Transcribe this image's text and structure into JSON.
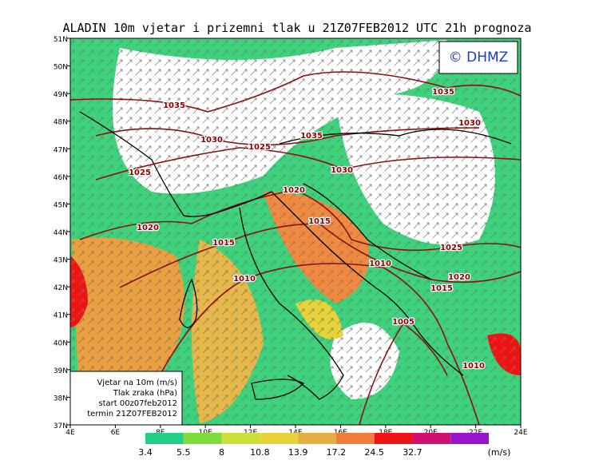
{
  "title": "ALADIN 10m vjetar i prizemni tlak u 21Z07FEB2012 UTC 21h prognoza",
  "logo": "© DHMZ",
  "lat_labels": [
    "51N",
    "50N",
    "49N",
    "48N",
    "47N",
    "46N",
    "45N",
    "44N",
    "43N",
    "42N",
    "41N",
    "40N",
    "39N",
    "38N",
    "37N"
  ],
  "lon_labels": [
    "4E",
    "6E",
    "8E",
    "10E",
    "12E",
    "14E",
    "16E",
    "18E",
    "20E",
    "22E",
    "24E"
  ],
  "isobars": [
    "1035",
    "1035",
    "1030",
    "1025",
    "1035",
    "1030",
    "1025",
    "1030",
    "1020",
    "1015",
    "1020",
    "1015",
    "1025",
    "1010",
    "1020",
    "1015",
    "1010",
    "1005",
    "1010"
  ],
  "legend_box": [
    "Vjetar na 10m (m/s)",
    "Tlak zraka (hPa)",
    "start 00z07feb2012",
    "termin 21Z07FEB2012"
  ],
  "colorbar": {
    "labels": [
      3.4,
      5.5,
      8,
      10.8,
      13.9,
      17.2,
      24.5,
      32.7
    ],
    "unit": "(m/s)",
    "colors": [
      "#22d08a",
      "#7edc3c",
      "#cbe03a",
      "#e6d23a",
      "#e6ad40",
      "#f07e3a",
      "#ee1414",
      "#cf1070",
      "#9a14cc"
    ]
  }
}
